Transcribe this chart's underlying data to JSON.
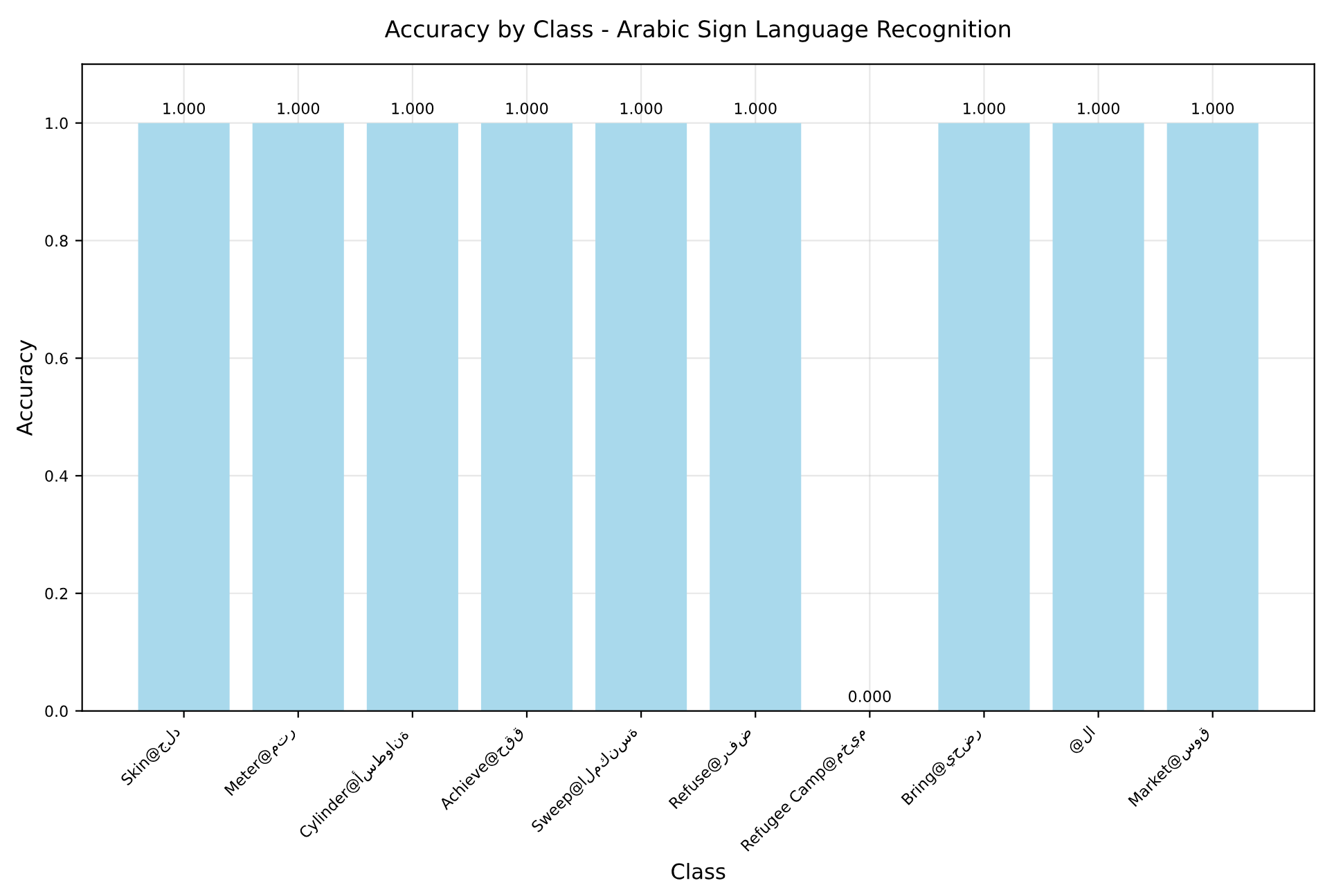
{
  "chart_data": {
    "type": "bar",
    "title": "Accuracy by Class - Arabic Sign Language Recognition",
    "xlabel": "Class",
    "ylabel": "Accuracy",
    "categories": [
      "Skin@جلد",
      "Meter@متر",
      "Cylinder@أسطوانة",
      "Achieve@حقق",
      "Sweep@المكنسة",
      "Refuse@رفض",
      "Refugee Camp@مخيم",
      "Bring@يحضر",
      "@لا",
      "Market@سوق"
    ],
    "values": [
      1.0,
      1.0,
      1.0,
      1.0,
      1.0,
      1.0,
      0.0,
      1.0,
      1.0,
      1.0
    ],
    "value_labels": [
      "1.000",
      "1.000",
      "1.000",
      "1.000",
      "1.000",
      "1.000",
      "0.000",
      "1.000",
      "1.000",
      "1.000"
    ],
    "color": "#a9d9ec",
    "ylim": [
      0,
      1.1
    ],
    "yticks": [
      {
        "value": 0,
        "label": "0.0"
      },
      {
        "value": 0.2,
        "label": "0.2"
      },
      {
        "value": 0.4,
        "label": "0.4"
      },
      {
        "value": 0.6,
        "label": "0.6"
      },
      {
        "value": 0.8,
        "label": "0.8"
      },
      {
        "value": 1.0,
        "label": "1.0"
      }
    ],
    "grid": true
  }
}
